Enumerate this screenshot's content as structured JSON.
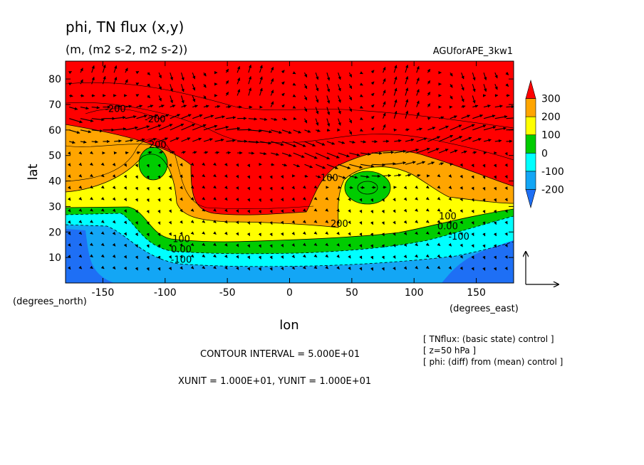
{
  "chart_data": {
    "type": "heatmap",
    "title": "phi, TN flux (x,y)",
    "subtitle": "(m, (m2 s-2, m2 s-2))",
    "experiment": "AGUforAPE_3kw1",
    "xlabel": "lon",
    "ylabel": "lat",
    "x_unit_label": "(degrees_east)",
    "y_unit_label": "(degrees_north)",
    "xlim": [
      -180,
      180
    ],
    "ylim": [
      0,
      87
    ],
    "x_ticks": [
      -150,
      -100,
      -50,
      0,
      50,
      100,
      150
    ],
    "x_tick_labels": [
      "-150",
      "-100",
      "-50",
      "0",
      "50",
      "100",
      "150"
    ],
    "y_ticks": [
      10,
      20,
      30,
      40,
      50,
      60,
      70,
      80
    ],
    "y_tick_labels": [
      "10",
      "20",
      "30",
      "40",
      "50",
      "60",
      "70",
      "80"
    ],
    "colorbar": {
      "levels": [
        -250,
        -200,
        -100,
        0,
        100,
        200,
        300,
        350
      ],
      "labels": [
        "300",
        "200",
        "100",
        "0",
        "-100",
        "-200"
      ],
      "colors": [
        "#1e6ff5",
        "#13a6f5",
        "#00ffff",
        "#00cc00",
        "#ffff00",
        "#ffa500",
        "#ff0000"
      ]
    },
    "contour_labels": [
      {
        "text": "-200",
        "lon": -140,
        "lat": 67
      },
      {
        "text": "-200",
        "lon": -108,
        "lat": 63
      },
      {
        "text": "200",
        "lon": -106,
        "lat": 53
      },
      {
        "text": "100",
        "lon": 32,
        "lat": 40
      },
      {
        "text": "200",
        "lon": 40,
        "lat": 22
      },
      {
        "text": "100",
        "lon": 127,
        "lat": 25
      },
      {
        "text": "0.00",
        "lon": 127,
        "lat": 21
      },
      {
        "text": "-100",
        "lon": 136,
        "lat": 17
      },
      {
        "text": "100",
        "lon": -87,
        "lat": 16
      },
      {
        "text": "0.00",
        "lon": -87,
        "lat": 12
      },
      {
        "text": "-100",
        "lon": -87,
        "lat": 8
      }
    ],
    "field_features": [
      {
        "name": "high-latitude ridge",
        "value": 300
      },
      {
        "name": "low 1",
        "lon": -110,
        "lat": 47,
        "value": 0
      },
      {
        "name": "low 2",
        "lon": 62,
        "lat": 38,
        "value": 0
      },
      {
        "name": "tropical minimum",
        "value": -200
      }
    ],
    "reference_vector": {
      "u": 10,
      "v": 10
    },
    "grid": false,
    "legend": "right"
  },
  "footer": {
    "contour_interval": "CONTOUR INTERVAL = 5.000E+01",
    "units": "XUNIT = 1.000E+01, YUNIT = 1.000E+01",
    "note1": "[ TNflux: (basic state) control ]",
    "note2": "[ z=50 hPa ]",
    "note3": "[ phi: (diff) from (mean) control ]"
  }
}
